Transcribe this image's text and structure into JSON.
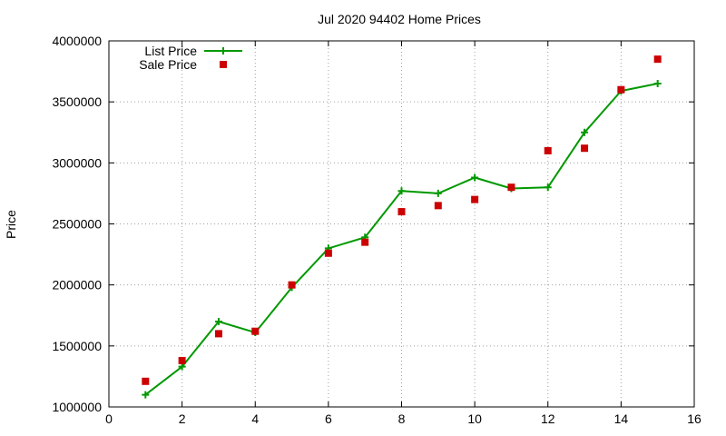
{
  "chart_data": {
    "type": "line",
    "title": "Jul 2020 94402 Home Prices",
    "xlabel": "",
    "ylabel": "Price",
    "xlim": [
      0,
      16
    ],
    "ylim": [
      1000000,
      4000000
    ],
    "x_ticks": [
      0,
      2,
      4,
      6,
      8,
      10,
      12,
      14,
      16
    ],
    "y_ticks": [
      1000000,
      1500000,
      2000000,
      2500000,
      3000000,
      3500000,
      4000000
    ],
    "x_tick_labels": [
      "0",
      "2",
      "4",
      "6",
      "8",
      "10",
      "12",
      "14",
      "16"
    ],
    "y_tick_labels": [
      "1000000",
      "1500000",
      "2000000",
      "2500000",
      "3000000",
      "3500000",
      "4000000"
    ],
    "grid": true,
    "legend_position": "top-left",
    "x": [
      1,
      2,
      3,
      4,
      5,
      6,
      7,
      8,
      9,
      10,
      11,
      12,
      13,
      14,
      15
    ],
    "series": [
      {
        "name": "List Price",
        "style": "line-plus",
        "color": "#009900",
        "values": [
          1100000,
          1330000,
          1700000,
          1610000,
          1980000,
          2300000,
          2390000,
          2770000,
          2750000,
          2880000,
          2790000,
          2800000,
          3250000,
          3590000,
          3650000
        ]
      },
      {
        "name": "Sale Price",
        "style": "square",
        "color": "#cc0000",
        "values": [
          1210000,
          1380000,
          1600000,
          1620000,
          2000000,
          2260000,
          2350000,
          2600000,
          2650000,
          2700000,
          2800000,
          3100000,
          3120000,
          3600000,
          3850000
        ]
      }
    ]
  }
}
